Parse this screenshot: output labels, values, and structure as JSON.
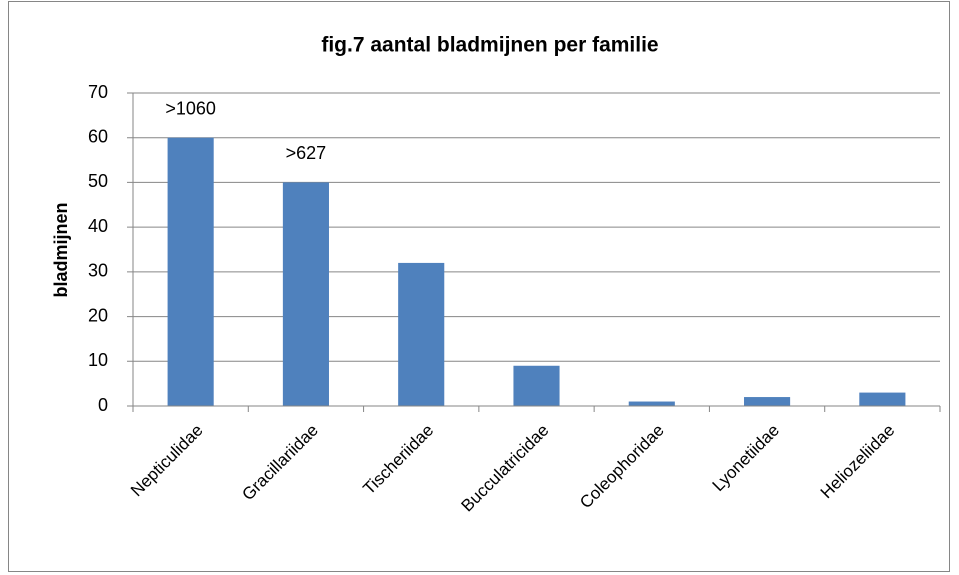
{
  "chart_data": {
    "type": "bar",
    "title": "fig.7  aantal bladmijnen per familie",
    "y_label": "bladmijnen",
    "categories": [
      "Nepticulidae",
      "Gracillariidae",
      "Tischeriidae",
      "Bucculatricidae",
      "Coleophoridae",
      "Lyonetiidae",
      "Heliozeliidae"
    ],
    "values": [
      60,
      50,
      32,
      9,
      1,
      2,
      3
    ],
    "annotations": [
      ">1060",
      ">627",
      null,
      null,
      null,
      null,
      null
    ],
    "color": "#4f81bd",
    "ylim": [
      0,
      70
    ],
    "yticks": [
      0,
      10,
      20,
      30,
      40,
      50,
      60,
      70
    ],
    "grid": true
  }
}
